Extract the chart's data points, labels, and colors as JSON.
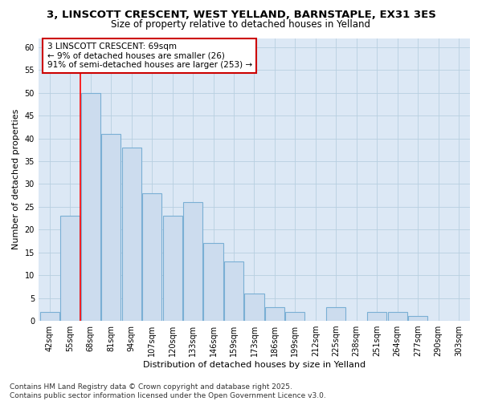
{
  "title_line1": "3, LINSCOTT CRESCENT, WEST YELLAND, BARNSTAPLE, EX31 3ES",
  "title_line2": "Size of property relative to detached houses in Yelland",
  "xlabel": "Distribution of detached houses by size in Yelland",
  "ylabel": "Number of detached properties",
  "categories": [
    "42sqm",
    "55sqm",
    "68sqm",
    "81sqm",
    "94sqm",
    "107sqm",
    "120sqm",
    "133sqm",
    "146sqm",
    "159sqm",
    "173sqm",
    "186sqm",
    "199sqm",
    "212sqm",
    "225sqm",
    "238sqm",
    "251sqm",
    "264sqm",
    "277sqm",
    "290sqm",
    "303sqm"
  ],
  "values": [
    2,
    23,
    50,
    41,
    38,
    28,
    23,
    26,
    17,
    13,
    6,
    3,
    2,
    0,
    3,
    0,
    2,
    2,
    1,
    0,
    0
  ],
  "bar_color": "#ccdcee",
  "bar_edge_color": "#7aafd4",
  "grid_color": "#b8cfe0",
  "plot_bg_color": "#dce8f5",
  "fig_bg_color": "#ffffff",
  "red_line_x": 1.5,
  "annotation_text": "3 LINSCOTT CRESCENT: 69sqm\n← 9% of detached houses are smaller (26)\n91% of semi-detached houses are larger (253) →",
  "annotation_box_color": "#ffffff",
  "annotation_box_edge": "#cc0000",
  "ylim": [
    0,
    62
  ],
  "yticks": [
    0,
    5,
    10,
    15,
    20,
    25,
    30,
    35,
    40,
    45,
    50,
    55,
    60
  ],
  "footnote": "Contains HM Land Registry data © Crown copyright and database right 2025.\nContains public sector information licensed under the Open Government Licence v3.0.",
  "title_fontsize": 9.5,
  "subtitle_fontsize": 8.5,
  "axis_label_fontsize": 8,
  "tick_fontsize": 7,
  "annot_fontsize": 7.5,
  "footnote_fontsize": 6.5
}
